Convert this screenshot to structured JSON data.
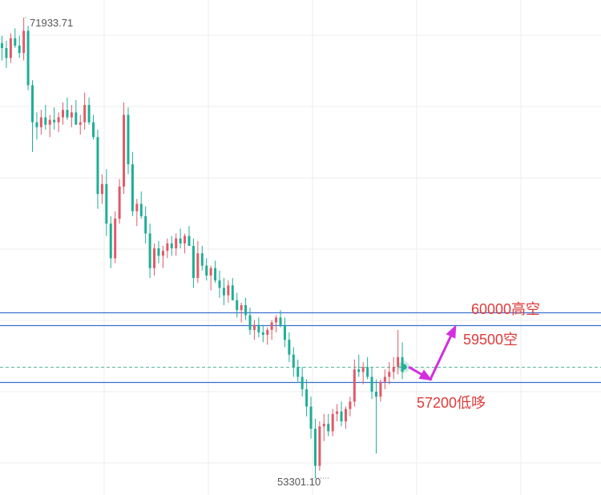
{
  "chart_data": {
    "type": "candlestick",
    "title": "",
    "xlabel": "",
    "ylabel": "",
    "grid": true,
    "legend": "none",
    "ylim": [
      52800,
      72400
    ],
    "colors": {
      "up": "#e05a68",
      "down": "#1fae96",
      "level_line": "#3a6fd0",
      "current_price_line": "#58b898",
      "arrow": "#d42ee0",
      "annotation_text": "#e03a3a",
      "grid": "#eeeeee"
    },
    "extremes": {
      "high_label": "71933.71",
      "low_label": "53301.10",
      "high": 71933.71,
      "low": 53301.1
    },
    "levels": [
      {
        "value": 60000,
        "label": "60000高空"
      },
      {
        "value": 59500,
        "label": "59500空"
      },
      {
        "value": 57200,
        "label": "57200低哆"
      }
    ],
    "current_price": 57800,
    "candles_ohlc": [
      [
        70900,
        71200,
        70200,
        70700
      ],
      [
        70700,
        71000,
        69900,
        70300
      ],
      [
        70300,
        71300,
        70100,
        71100
      ],
      [
        71100,
        71500,
        70700,
        70800
      ],
      [
        70800,
        71200,
        70300,
        70500
      ],
      [
        70500,
        71933,
        70200,
        71400
      ],
      [
        71400,
        71600,
        69000,
        69200
      ],
      [
        69200,
        69400,
        66500,
        67700
      ],
      [
        67700,
        68100,
        67000,
        67500
      ],
      [
        67500,
        68200,
        67200,
        67900
      ],
      [
        67900,
        68400,
        67400,
        67600
      ],
      [
        67600,
        68000,
        67100,
        67800
      ],
      [
        67800,
        68300,
        67400,
        67700
      ],
      [
        67700,
        68100,
        67300,
        67900
      ],
      [
        67900,
        68500,
        67600,
        68200
      ],
      [
        68200,
        68700,
        67800,
        67900
      ],
      [
        67900,
        68400,
        67500,
        68100
      ],
      [
        68100,
        68600,
        67700,
        67600
      ],
      [
        67600,
        68000,
        67200,
        67700
      ],
      [
        67700,
        68900,
        67400,
        68400
      ],
      [
        68400,
        68700,
        67600,
        67700
      ],
      [
        67700,
        68000,
        67000,
        67100
      ],
      [
        67100,
        67400,
        64200,
        64800
      ],
      [
        64800,
        65600,
        64400,
        65200
      ],
      [
        65200,
        65800,
        63100,
        63600
      ],
      [
        63600,
        63900,
        61800,
        62200
      ],
      [
        62200,
        64100,
        62000,
        63800
      ],
      [
        63800,
        65400,
        63600,
        65100
      ],
      [
        65100,
        68500,
        64800,
        68000
      ],
      [
        68000,
        68300,
        65600,
        66000
      ],
      [
        66000,
        66500,
        63900,
        64100
      ],
      [
        64100,
        64600,
        63500,
        64400
      ],
      [
        64400,
        64900,
        63800,
        63900
      ],
      [
        63900,
        64300,
        62800,
        63200
      ],
      [
        63200,
        63600,
        61400,
        61800
      ],
      [
        61800,
        62800,
        61500,
        62600
      ],
      [
        62600,
        62900,
        62000,
        62300
      ],
      [
        62300,
        62700,
        61800,
        62500
      ],
      [
        62500,
        63000,
        62200,
        62800
      ],
      [
        62800,
        63100,
        62300,
        62600
      ],
      [
        62600,
        63200,
        62300,
        63000
      ],
      [
        63000,
        63400,
        62600,
        62800
      ],
      [
        62800,
        63200,
        62400,
        63100
      ],
      [
        63100,
        63500,
        62700,
        62700
      ],
      [
        62700,
        63000,
        61000,
        61400
      ],
      [
        61400,
        62900,
        61200,
        62400
      ],
      [
        62400,
        62700,
        61700,
        61900
      ],
      [
        61900,
        62200,
        61300,
        61500
      ],
      [
        61500,
        61900,
        60900,
        61800
      ],
      [
        61800,
        62100,
        61200,
        61300
      ],
      [
        61300,
        61700,
        60600,
        61000
      ],
      [
        61000,
        61400,
        60300,
        60700
      ],
      [
        60700,
        61300,
        60400,
        61100
      ],
      [
        61100,
        61400,
        60500,
        60500
      ],
      [
        60500,
        60800,
        59800,
        60100
      ],
      [
        60100,
        60400,
        59600,
        60300
      ],
      [
        60300,
        60600,
        59700,
        59900
      ],
      [
        59900,
        60200,
        59100,
        59300
      ],
      [
        59300,
        59700,
        58900,
        59500
      ],
      [
        59500,
        59800,
        59000,
        59200
      ],
      [
        59200,
        59500,
        58800,
        59100
      ],
      [
        59100,
        59400,
        58700,
        59300
      ],
      [
        59300,
        59700,
        58900,
        59600
      ],
      [
        59600,
        59900,
        59200,
        59800
      ],
      [
        59800,
        60100,
        59400,
        59500
      ],
      [
        59500,
        59800,
        58600,
        58900
      ],
      [
        58900,
        59200,
        58000,
        58300
      ],
      [
        58300,
        58600,
        57400,
        57800
      ],
      [
        57800,
        58100,
        57200,
        57400
      ],
      [
        57400,
        57800,
        56600,
        56900
      ],
      [
        56900,
        57300,
        55800,
        56200
      ],
      [
        56200,
        56600,
        54900,
        55300
      ],
      [
        55300,
        55700,
        53301,
        53800
      ],
      [
        53800,
        55600,
        53600,
        55400
      ],
      [
        55400,
        55900,
        54800,
        55500
      ],
      [
        55500,
        55900,
        55000,
        55200
      ],
      [
        55200,
        56100,
        55000,
        55900
      ],
      [
        55900,
        56300,
        55600,
        56000
      ],
      [
        56000,
        56400,
        55400,
        55600
      ],
      [
        55600,
        56200,
        55300,
        56100
      ],
      [
        56100,
        56600,
        55800,
        56400
      ],
      [
        56400,
        58100,
        56200,
        57700
      ],
      [
        57700,
        58300,
        57400,
        57600
      ],
      [
        57600,
        58000,
        57100,
        57800
      ],
      [
        57800,
        58200,
        57300,
        57400
      ],
      [
        57400,
        57800,
        56500,
        56800
      ],
      [
        56800,
        57300,
        54300,
        56600
      ],
      [
        56600,
        57300,
        56400,
        57200
      ],
      [
        57200,
        57700,
        56900,
        57400
      ],
      [
        57400,
        58000,
        57100,
        57600
      ],
      [
        57600,
        58200,
        57300,
        57800
      ],
      [
        57800,
        59300,
        57500,
        58200
      ],
      [
        58200,
        58800,
        57300,
        57600
      ]
    ]
  }
}
